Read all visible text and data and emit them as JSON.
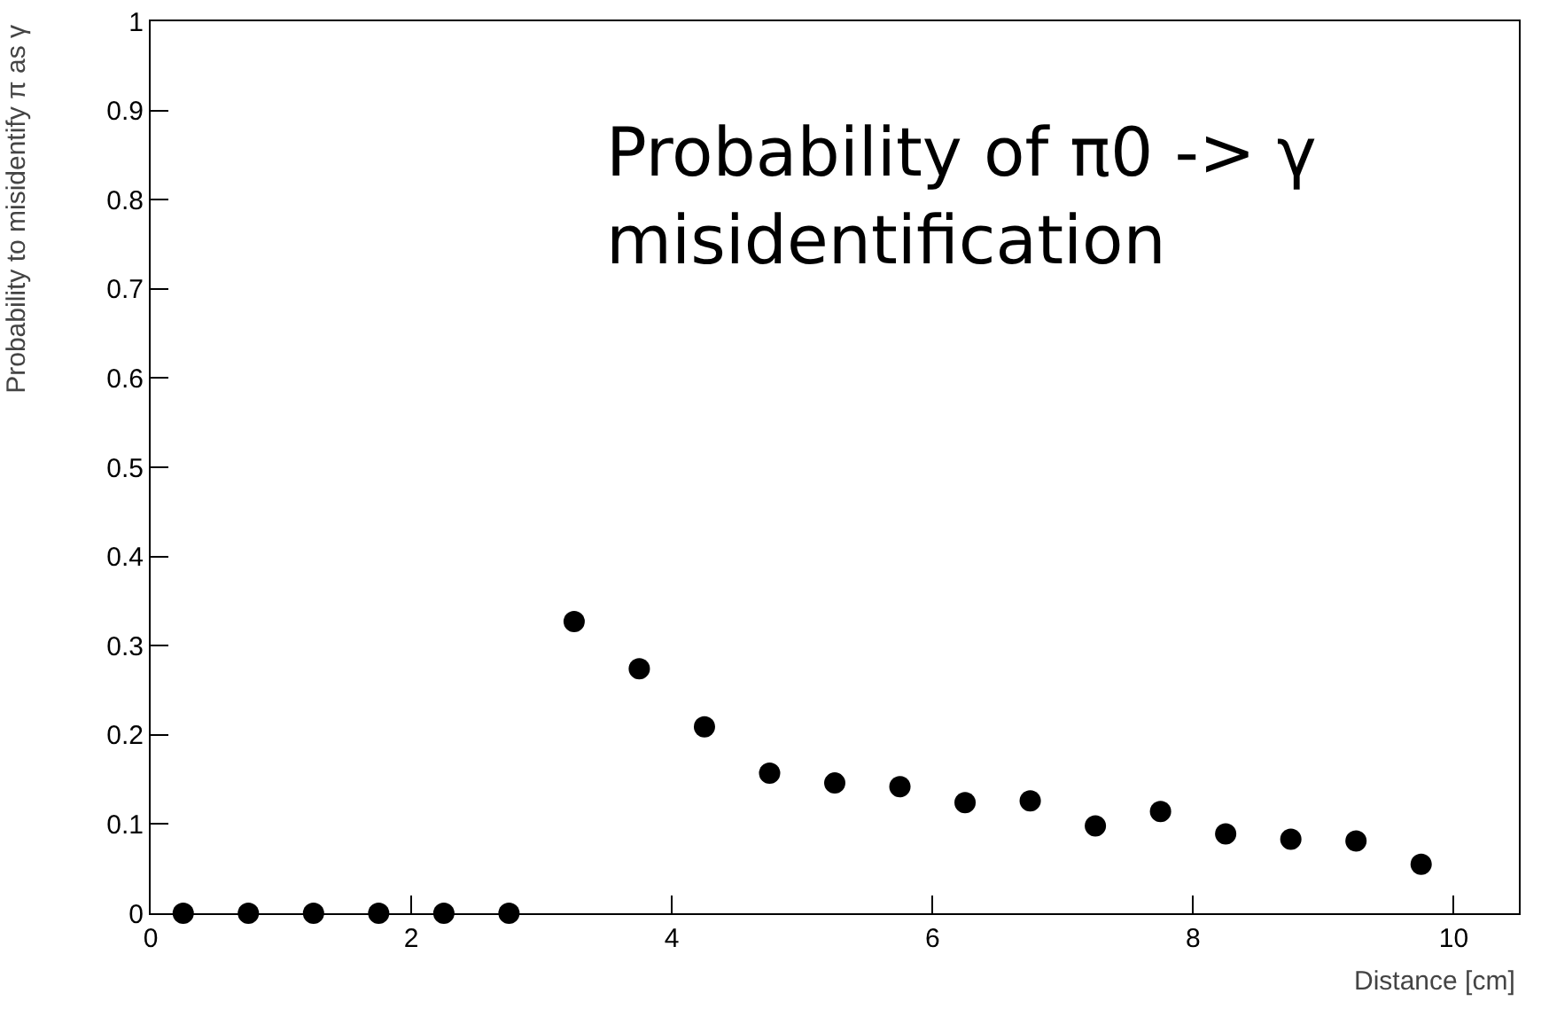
{
  "chart_data": {
    "type": "scatter",
    "title": "Probability of π0 -> γ misidentification",
    "xlabel": "Distance [cm]",
    "ylabel": "Probability to misidentify π as γ",
    "x": [
      0.25,
      0.75,
      1.25,
      1.75,
      2.25,
      2.75,
      3.25,
      3.75,
      4.25,
      4.75,
      5.25,
      5.75,
      6.25,
      6.75,
      7.25,
      7.75,
      8.25,
      8.75,
      9.25,
      9.75
    ],
    "series": [
      {
        "color": "#000000",
        "values": [
          0,
          0,
          0,
          0,
          0,
          0,
          0.327,
          0.274,
          0.209,
          0.157,
          0.146,
          0.142,
          0.124,
          0.126,
          0.098,
          0.114,
          0.089,
          0.083,
          0.081,
          0.055
        ]
      }
    ],
    "xlim": [
      0,
      10.5
    ],
    "xticks": [
      0,
      2,
      4,
      6,
      8,
      10
    ],
    "ylim": [
      0,
      1
    ],
    "yticks": [
      0,
      0.1,
      0.2,
      0.3,
      0.4,
      0.5,
      0.6,
      0.7,
      0.8,
      0.9,
      1
    ],
    "grid": false,
    "marker": "circle"
  }
}
